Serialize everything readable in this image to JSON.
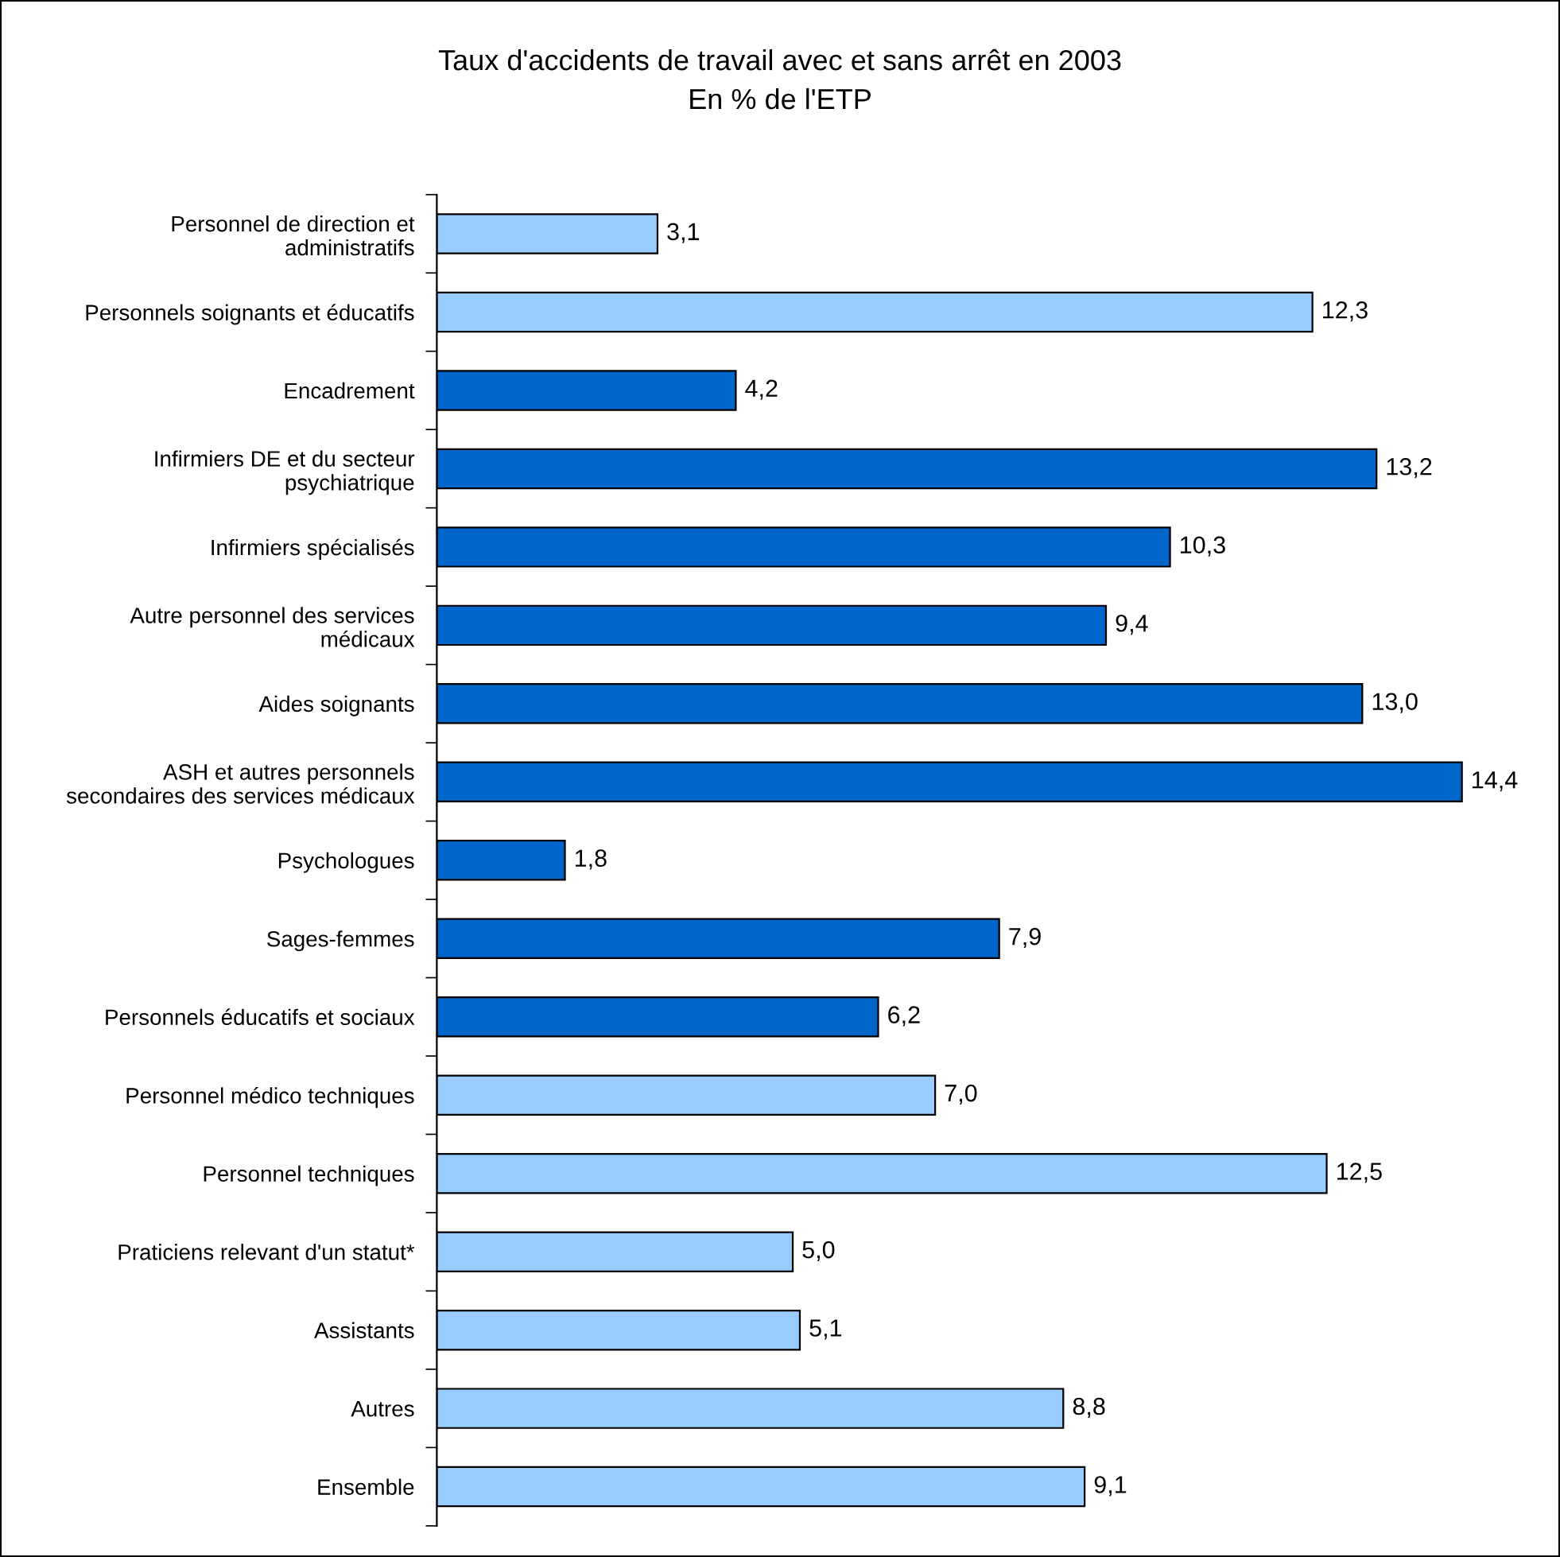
{
  "chart_data": {
    "type": "bar",
    "orientation": "horizontal",
    "title": "Taux d'accidents de travail avec et sans arrêt en 2003",
    "subtitle": "En % de l'ETP",
    "categories": [
      "Personnel de direction et\nadministratifs",
      "Personnels soignants et éducatifs",
      "Encadrement",
      "Infirmiers DE et du secteur\npsychiatrique",
      "Infirmiers spécialisés",
      "Autre personnel des services\nmédicaux",
      "Aides soignants",
      "ASH et autres personnels\nsecondaires des services médicaux",
      "Psychologues",
      "Sages-femmes",
      "Personnels éducatifs et sociaux",
      "Personnel médico techniques",
      "Personnel techniques",
      "Praticiens relevant d'un statut*",
      "Assistants",
      "Autres",
      "Ensemble"
    ],
    "values": [
      3.1,
      12.3,
      4.2,
      13.2,
      10.3,
      9.4,
      13.0,
      14.4,
      1.8,
      7.9,
      6.2,
      7.0,
      12.5,
      5.0,
      5.1,
      8.8,
      9.1
    ],
    "value_labels": [
      "3,1",
      "12,3",
      "4,2",
      "13,2",
      "10,3",
      "9,4",
      "13,0",
      "14,4",
      "1,8",
      "7,9",
      "6,2",
      "7,0",
      "12,5",
      "5,0",
      "5,1",
      "8,8",
      "9,1"
    ],
    "colors": [
      "#99ccff",
      "#99ccff",
      "#0066cc",
      "#0066cc",
      "#0066cc",
      "#0066cc",
      "#0066cc",
      "#0066cc",
      "#0066cc",
      "#0066cc",
      "#0066cc",
      "#99ccff",
      "#99ccff",
      "#99ccff",
      "#99ccff",
      "#99ccff",
      "#99ccff"
    ],
    "grid": false,
    "legend": false
  }
}
